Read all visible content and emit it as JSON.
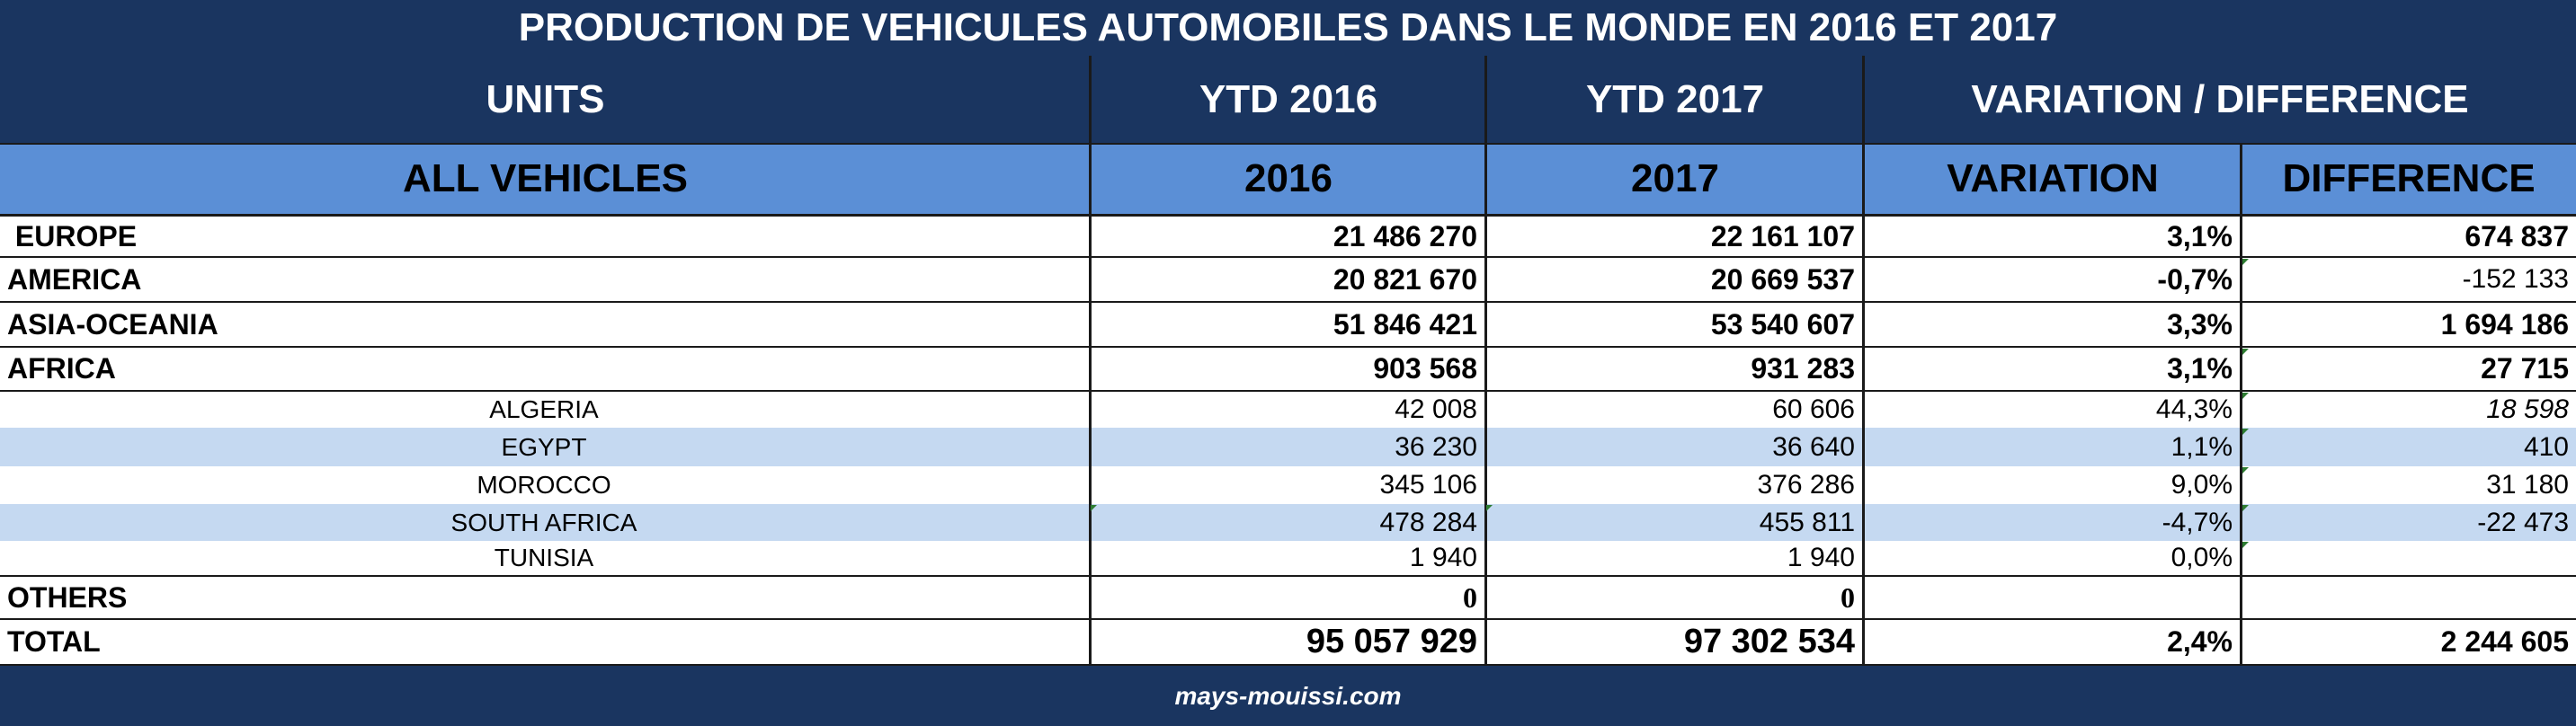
{
  "title": "PRODUCTION DE VEHICULES AUTOMOBILES DANS LE MONDE EN 2016 ET 2017",
  "header1": {
    "units": "UNITS",
    "ytd2016": "YTD 2016",
    "ytd2017": "YTD 2017",
    "variation_difference": "VARIATION / DIFFERENCE"
  },
  "header2": {
    "all_vehicles": "ALL VEHICLES",
    "y2016": "2016",
    "y2017": "2017",
    "variation": "VARIATION",
    "difference": "DIFFERENCE"
  },
  "rows": [
    {
      "label": " EUROPE",
      "v2016": "21 486 270",
      "v2017": "22 161 107",
      "variation": "3,1%",
      "difference": "674 837"
    },
    {
      "label": "AMERICA",
      "v2016": "20 821 670",
      "v2017": "20 669 537",
      "variation": "-0,7%",
      "difference": "-152 133"
    },
    {
      "label": "ASIA-OCEANIA",
      "v2016": "51 846 421",
      "v2017": "53 540 607",
      "variation": "3,3%",
      "difference": "1 694 186"
    },
    {
      "label": "AFRICA",
      "v2016": "903 568",
      "v2017": "931 283",
      "variation": "3,1%",
      "difference": "27 715"
    },
    {
      "label": "ALGERIA",
      "v2016": "42 008",
      "v2017": "60 606",
      "variation": "44,3%",
      "difference": "18 598"
    },
    {
      "label": "EGYPT",
      "v2016": "36 230",
      "v2017": "36 640",
      "variation": "1,1%",
      "difference": "410"
    },
    {
      "label": "MOROCCO",
      "v2016": "345 106",
      "v2017": "376 286",
      "variation": "9,0%",
      "difference": "31 180"
    },
    {
      "label": "SOUTH AFRICA",
      "v2016": "478 284",
      "v2017": "455 811",
      "variation": "-4,7%",
      "difference": "-22 473"
    },
    {
      "label": "TUNISIA",
      "v2016": "1 940",
      "v2017": "1 940",
      "variation": "0,0%",
      "difference": ""
    },
    {
      "label": "OTHERS",
      "v2016": "0",
      "v2017": "0",
      "variation": "",
      "difference": ""
    },
    {
      "label": "TOTAL",
      "v2016": "95 057 929",
      "v2017": "97 302 534",
      "variation": "2,4%",
      "difference": "2 244 605"
    }
  ],
  "footer": "mays-mouissi.com",
  "colors": {
    "navy": "#1a3560",
    "header_blue": "#5b8fd6",
    "stripe": "#c5d9f1"
  }
}
